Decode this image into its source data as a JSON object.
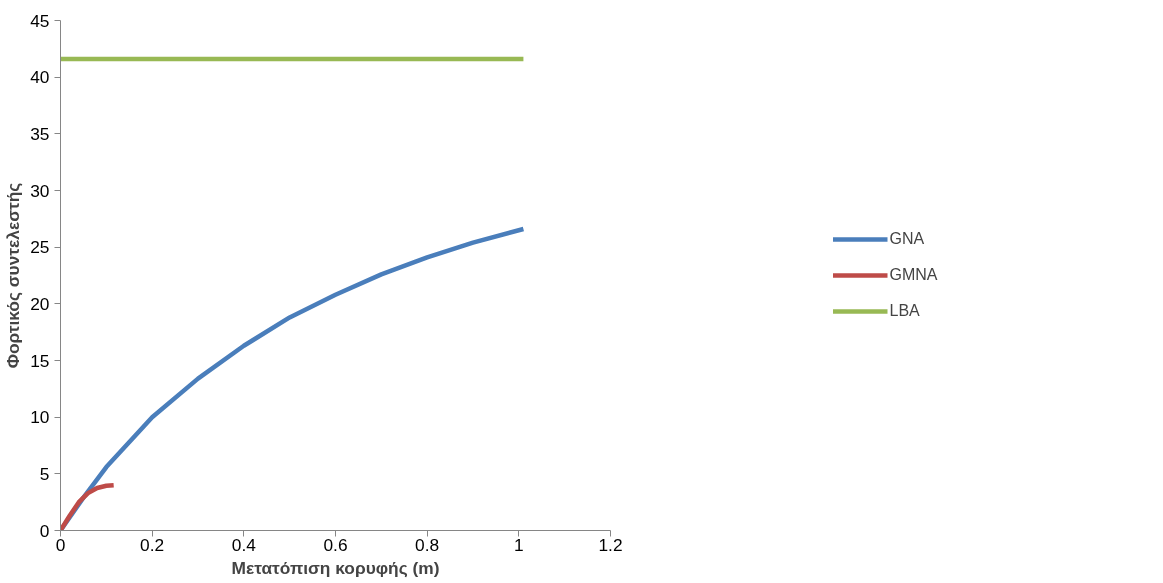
{
  "chart_data": {
    "type": "line",
    "xlabel": "Μετατόπιση κορυφής (m)",
    "ylabel": "Φορτικός συντελεστής",
    "xlim": [
      0,
      1.2
    ],
    "ylim": [
      0,
      45
    ],
    "xticks": [
      0,
      0.2,
      0.4,
      0.6,
      0.8,
      1,
      1.2
    ],
    "yticks": [
      0,
      5,
      10,
      15,
      20,
      25,
      30,
      35,
      40,
      45
    ],
    "grid": false,
    "legend": "right",
    "marker": "none",
    "line_style": "solid",
    "series": [
      {
        "name": "GNA",
        "color": "#4a7ebb",
        "x": [
          0,
          0.05,
          0.1,
          0.2,
          0.3,
          0.4,
          0.5,
          0.6,
          0.7,
          0.8,
          0.9,
          1.01
        ],
        "values": [
          0,
          2.9,
          5.6,
          10,
          13.4,
          16.3,
          18.8,
          20.8,
          22.6,
          24.1,
          25.4,
          26.6
        ]
      },
      {
        "name": "GMNA",
        "color": "#be4b48",
        "x": [
          0,
          0.02,
          0.04,
          0.06,
          0.08,
          0.1,
          0.116
        ],
        "values": [
          0,
          1.3,
          2.5,
          3.3,
          3.75,
          3.95,
          4.0
        ]
      },
      {
        "name": "LBA",
        "color": "#98b954",
        "x": [
          0,
          1.01
        ],
        "values": [
          41.6,
          41.6
        ]
      }
    ]
  }
}
